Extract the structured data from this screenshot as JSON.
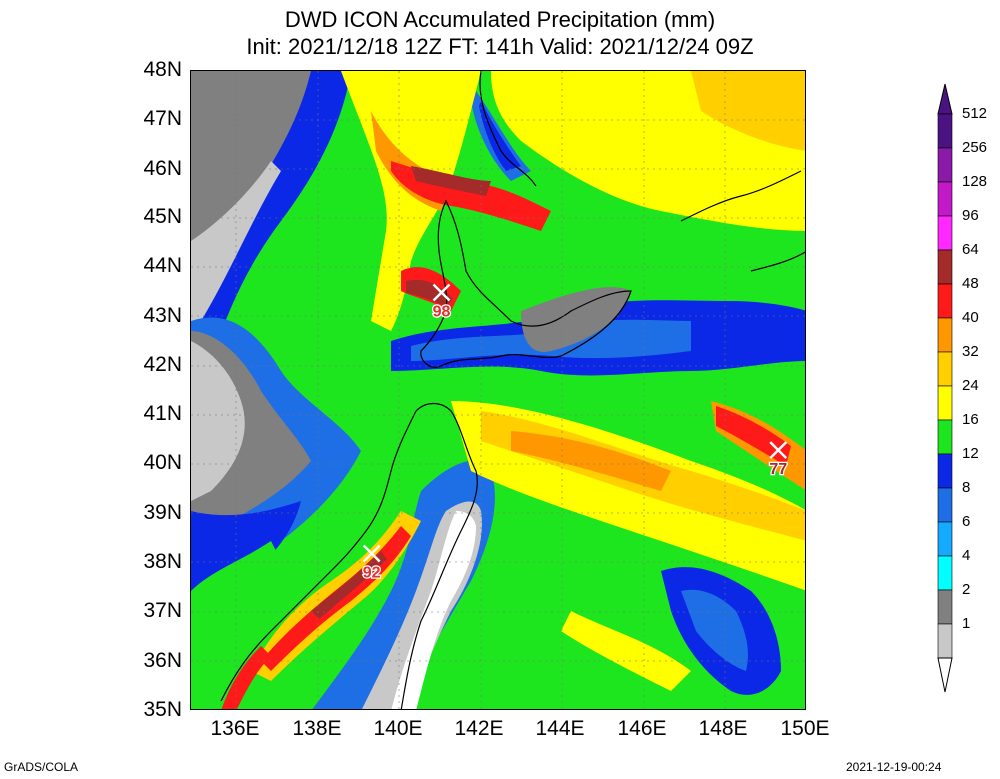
{
  "header": {
    "title": "DWD ICON Accumulated Precipitation (mm)",
    "subtitle": "Init: 2021/12/18 12Z  FT: 141h  Valid: 2021/12/24 09Z"
  },
  "axes": {
    "lat_labels": [
      "48N",
      "47N",
      "46N",
      "45N",
      "44N",
      "43N",
      "42N",
      "41N",
      "40N",
      "39N",
      "38N",
      "37N",
      "36N",
      "35N"
    ],
    "lon_labels": [
      "136E",
      "138E",
      "140E",
      "142E",
      "144E",
      "146E",
      "148E",
      "150E"
    ]
  },
  "colorbar": {
    "levels": [
      "512",
      "256",
      "128",
      "96",
      "64",
      "48",
      "40",
      "32",
      "24",
      "16",
      "12",
      "8",
      "6",
      "4",
      "2",
      "1"
    ],
    "colors": [
      "#4b1282",
      "#8c1aa8",
      "#c419c8",
      "#ff28ff",
      "#a52a2a",
      "#ff1a1a",
      "#ff9800",
      "#ffcf00",
      "#ffff00",
      "#1ee61e",
      "#0a28e6",
      "#1e6ee6",
      "#14aaff",
      "#00ffff",
      "#808080",
      "#c8c8c8"
    ]
  },
  "maxima": [
    {
      "label": "98",
      "lon": 141.1,
      "lat": 43.5,
      "color": "#e03030"
    },
    {
      "label": "92",
      "lon": 139.4,
      "lat": 38.2,
      "color": "#e03030"
    },
    {
      "label": "77",
      "lon": 149.3,
      "lat": 40.3,
      "color": "#a52a2a"
    }
  ],
  "footer": {
    "left": "GrADS/COLA",
    "right": "2021-12-19-00:24"
  }
}
